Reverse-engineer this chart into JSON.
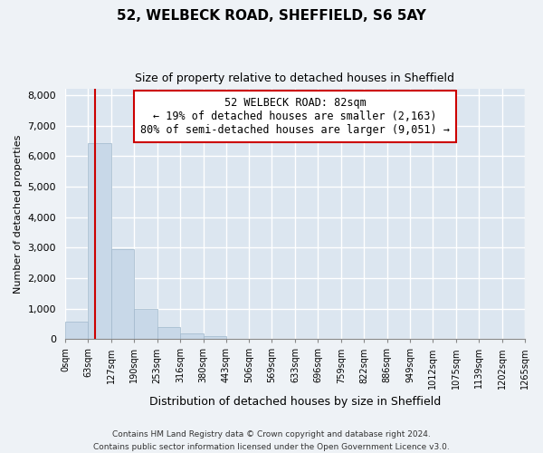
{
  "title_line1": "52, WELBECK ROAD, SHEFFIELD, S6 5AY",
  "title_line2": "Size of property relative to detached houses in Sheffield",
  "xlabel": "Distribution of detached houses by size in Sheffield",
  "ylabel": "Number of detached properties",
  "bar_edges": [
    0,
    63,
    127,
    190,
    253,
    316,
    380,
    443,
    506,
    569,
    633,
    696,
    759,
    822,
    886,
    949,
    1012,
    1075,
    1139,
    1202,
    1265
  ],
  "bar_heights": [
    560,
    6420,
    2940,
    990,
    380,
    175,
    90,
    0,
    0,
    0,
    0,
    0,
    0,
    0,
    0,
    0,
    0,
    0,
    0,
    0
  ],
  "bar_color": "#c8d8e8",
  "bar_edge_color": "#a0b8cc",
  "property_line_x": 82,
  "property_line_color": "#cc0000",
  "ylim": [
    0,
    8200
  ],
  "yticks": [
    0,
    1000,
    2000,
    3000,
    4000,
    5000,
    6000,
    7000,
    8000
  ],
  "xtick_labels": [
    "0sqm",
    "63sqm",
    "127sqm",
    "190sqm",
    "253sqm",
    "316sqm",
    "380sqm",
    "443sqm",
    "506sqm",
    "569sqm",
    "633sqm",
    "696sqm",
    "759sqm",
    "822sqm",
    "886sqm",
    "949sqm",
    "1012sqm",
    "1075sqm",
    "1139sqm",
    "1202sqm",
    "1265sqm"
  ],
  "annotation_title": "52 WELBECK ROAD: 82sqm",
  "annotation_line1": "← 19% of detached houses are smaller (2,163)",
  "annotation_line2": "80% of semi-detached houses are larger (9,051) →",
  "annotation_box_color": "#ffffff",
  "annotation_box_edge": "#cc0000",
  "footer_line1": "Contains HM Land Registry data © Crown copyright and database right 2024.",
  "footer_line2": "Contains public sector information licensed under the Open Government Licence v3.0.",
  "bg_color": "#eef2f6",
  "plot_bg_color": "#dce6f0",
  "grid_color": "#ffffff"
}
